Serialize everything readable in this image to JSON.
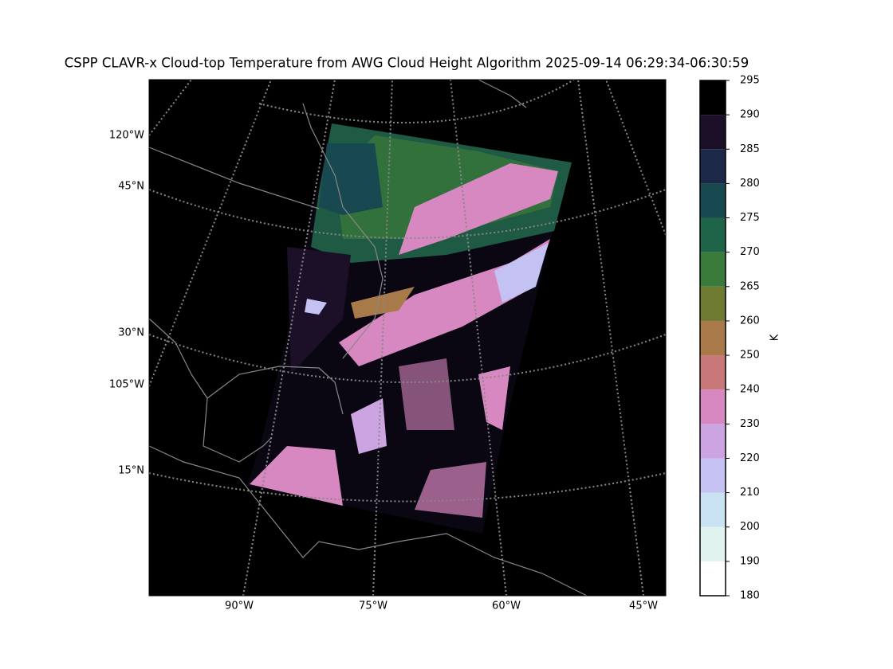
{
  "title": "CSPP CLAVR-x Cloud-top Temperature from AWG Cloud Height Algorithm 2025-09-14 06:29:34-06:30:59",
  "map": {
    "left_labels": [
      "120°W",
      "45°N",
      "30°N",
      "105°W",
      "15°N"
    ],
    "bottom_labels": [
      "90°W",
      "75°W",
      "60°W",
      "45°W"
    ]
  },
  "colorbar": {
    "label": "K",
    "ticks": [
      180,
      190,
      200,
      210,
      220,
      230,
      240,
      250,
      260,
      265,
      270,
      275,
      280,
      285,
      290,
      295
    ],
    "colors": [
      "#ffffff",
      "#e0f3ee",
      "#c8e2f2",
      "#c4c2f2",
      "#cca4e2",
      "#d888c0",
      "#c87878",
      "#a87a4a",
      "#6e7a32",
      "#3a7a3a",
      "#1e6448",
      "#184850",
      "#1c2848",
      "#1c1028",
      "#000000"
    ]
  }
}
